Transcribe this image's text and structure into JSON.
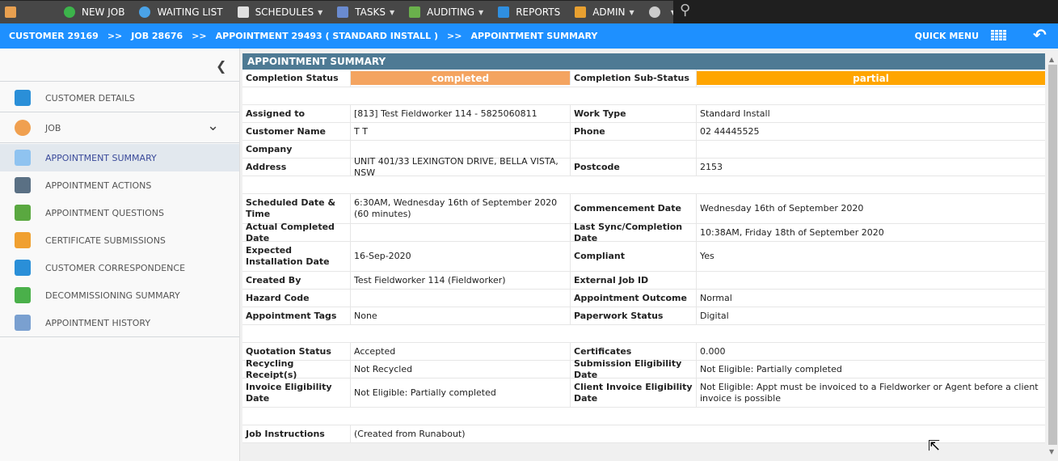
{
  "topnav": [
    {
      "label": "",
      "icon": "home-icon",
      "color": "#e8a050",
      "dropdown": false
    },
    {
      "label": "NEW JOB",
      "icon": "plus-circle-icon",
      "color": "#3cb44b",
      "dropdown": false
    },
    {
      "label": "WAITING LIST",
      "icon": "clock-icon",
      "color": "#4aa3e8",
      "dropdown": false
    },
    {
      "label": "SCHEDULES",
      "icon": "calendar-icon",
      "color": "#e0e0e0",
      "dropdown": true
    },
    {
      "label": "TASKS",
      "icon": "list-icon",
      "color": "#6a8bd0",
      "dropdown": true
    },
    {
      "label": "AUDITING",
      "icon": "checkbox-icon",
      "color": "#6ab04c",
      "dropdown": true
    },
    {
      "label": "REPORTS",
      "icon": "bar-chart-icon",
      "color": "#2f8fe0",
      "dropdown": false
    },
    {
      "label": "ADMIN",
      "icon": "user-icon",
      "color": "#e8a030",
      "dropdown": true
    },
    {
      "label": "",
      "icon": "gear-icon",
      "color": "#cccccc",
      "dropdown": true
    }
  ],
  "breadcrumb": [
    "CUSTOMER 29169",
    ">>",
    "JOB 28676",
    ">>",
    "APPOINTMENT 29493 ( STANDARD INSTALL )",
    ">>",
    "APPOINTMENT SUMMARY"
  ],
  "quick_menu": "QUICK MENU",
  "sidebar": [
    {
      "label": "CUSTOMER DETAILS",
      "icon": "customer-icon",
      "color": "#2a8fd8"
    },
    {
      "label": "JOB",
      "icon": "wrench-icon",
      "color": "#f0a050",
      "chevron": true
    },
    {
      "label": "APPOINTMENT SUMMARY",
      "icon": "summary-icon",
      "color": "#8fc3f0",
      "active": true
    },
    {
      "label": "APPOINTMENT ACTIONS",
      "icon": "grid-icon",
      "color": "#5a7084"
    },
    {
      "label": "APPOINTMENT QUESTIONS",
      "icon": "questions-icon",
      "color": "#5aa840"
    },
    {
      "label": "CERTIFICATE SUBMISSIONS",
      "icon": "certificate-icon",
      "color": "#f0a030"
    },
    {
      "label": "CUSTOMER CORRESPONDENCE",
      "icon": "correspondence-icon",
      "color": "#2a8fd8"
    },
    {
      "label": "DECOMMISSIONING SUMMARY",
      "icon": "recycle-icon",
      "color": "#4ab04a"
    },
    {
      "label": "APPOINTMENT HISTORY",
      "icon": "history-icon",
      "color": "#7aa0d0"
    }
  ],
  "summary": {
    "title": "APPOINTMENT SUMMARY",
    "status_colors": {
      "completed": "#f4a460",
      "partial": "#ffa500"
    },
    "rows": [
      [
        "Completion Status",
        "completed",
        "Completion Sub-Status",
        "partial"
      ],
      [],
      [
        "Assigned to",
        "[813] Test Fieldworker 114 - 5825060811",
        "Work Type",
        "Standard Install"
      ],
      [
        "Customer Name",
        "T T",
        "Phone",
        "02 44445525"
      ],
      [
        "Company",
        "",
        "",
        ""
      ],
      [
        "Address",
        "UNIT 401/33 LEXINGTON DRIVE, BELLA VISTA, NSW",
        "Postcode",
        "2153"
      ],
      [],
      [
        "Scheduled Date & Time",
        "6:30AM, Wednesday 16th of September 2020 (60 minutes)",
        "Commencement Date",
        "Wednesday 16th of September 2020"
      ],
      [
        "Actual Completed Date",
        "",
        "Last Sync/Completion Date",
        "10:38AM, Friday 18th of September 2020"
      ],
      [
        "Expected Installation Date",
        "16-Sep-2020",
        "Compliant",
        "Yes"
      ],
      [
        "Created By",
        "Test Fieldworker 114 (Fieldworker)",
        "External Job ID",
        ""
      ],
      [
        "Hazard Code",
        "",
        "Appointment Outcome",
        "Normal"
      ],
      [
        "Appointment Tags",
        "None",
        "Paperwork Status",
        "Digital"
      ],
      [],
      [
        "Quotation Status",
        "Accepted",
        "Certificates",
        "0.000"
      ],
      [
        "Recycling Receipt(s)",
        "Not Recycled",
        "Submission Eligibility Date",
        "Not Eligible: Partially completed"
      ],
      [
        "Invoice Eligibility Date",
        "Not Eligible: Partially completed",
        "Client Invoice Eligibility Date",
        "Not Eligible: Appt must be invoiced to a Fieldworker or Agent before a client invoice is possible"
      ],
      [],
      [
        "Job Instructions",
        "(Created from Runabout)"
      ]
    ]
  }
}
